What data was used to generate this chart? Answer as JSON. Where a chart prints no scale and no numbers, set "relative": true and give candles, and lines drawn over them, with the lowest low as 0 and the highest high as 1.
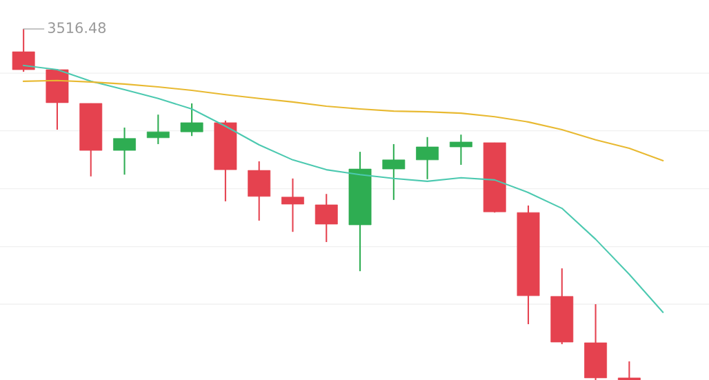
{
  "chart_data": {
    "type": "candlestick",
    "relative": true,
    "grid": "y",
    "categories": [
      null,
      null,
      null,
      null,
      null,
      null,
      null,
      null,
      null,
      null,
      null,
      null,
      null,
      null,
      null,
      null,
      null,
      null,
      null,
      null
    ],
    "ohlc": [
      [
        0.935,
        1.0,
        0.878,
        0.884
      ],
      [
        0.884,
        0.886,
        0.713,
        0.79
      ],
      [
        0.788,
        0.788,
        0.58,
        0.654
      ],
      [
        0.654,
        0.719,
        0.585,
        0.688
      ],
      [
        0.69,
        0.756,
        0.672,
        0.707
      ],
      [
        0.707,
        0.788,
        0.695,
        0.733
      ],
      [
        0.733,
        0.739,
        0.509,
        0.599
      ],
      [
        0.597,
        0.623,
        0.454,
        0.523
      ],
      [
        0.521,
        0.574,
        0.422,
        0.501
      ],
      [
        0.499,
        0.53,
        0.393,
        0.444
      ],
      [
        0.442,
        0.65,
        0.31,
        0.601
      ],
      [
        0.601,
        0.672,
        0.513,
        0.627
      ],
      [
        0.627,
        0.692,
        0.572,
        0.664
      ],
      [
        0.664,
        0.699,
        0.613,
        0.678
      ],
      [
        0.676,
        0.676,
        0.477,
        0.479
      ],
      [
        0.477,
        0.497,
        0.159,
        0.24
      ],
      [
        0.238,
        0.318,
        0.102,
        0.108
      ],
      [
        0.106,
        0.216,
        0.0,
        0.006
      ],
      [
        0.006,
        0.053,
        0.0,
        0.0
      ],
      null
    ],
    "colors": [
      "#e5424f",
      "#e5424f",
      "#e5424f",
      "#2ead52",
      "#2ead52",
      "#2ead52",
      "#e5424f",
      "#e5424f",
      "#e5424f",
      "#e5424f",
      "#2ead52",
      "#2ead52",
      "#2ead52",
      "#2ead52",
      "#e5424f",
      "#e5424f",
      "#e5424f",
      "#e5424f",
      "#e5424f",
      null
    ],
    "series": [
      {
        "type": "line",
        "color": "#4cc9b0",
        "values": [
          0.896,
          0.884,
          0.851,
          0.827,
          0.802,
          0.772,
          0.723,
          0.67,
          0.627,
          0.599,
          0.585,
          0.574,
          0.566,
          0.576,
          0.57,
          0.534,
          0.489,
          0.401,
          0.301,
          0.193
        ]
      },
      {
        "type": "line",
        "color": "#e8b931",
        "values": [
          0.851,
          0.853,
          0.849,
          0.843,
          0.835,
          0.825,
          0.813,
          0.802,
          0.792,
          0.78,
          0.772,
          0.766,
          0.764,
          0.76,
          0.75,
          0.735,
          0.713,
          0.684,
          0.66,
          0.625
        ]
      }
    ],
    "marker": "none",
    "annotations": [
      "3516.48"
    ]
  }
}
